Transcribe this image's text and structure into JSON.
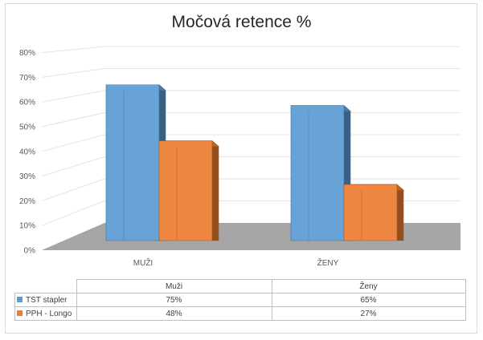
{
  "chart_data": {
    "type": "bar",
    "title": "Močová retence %",
    "categories": [
      "MUŽI",
      "ŽENY"
    ],
    "table_headers": [
      "Muži",
      "Ženy"
    ],
    "series": [
      {
        "name": "TST stapler",
        "values": [
          75,
          65
        ],
        "labels": [
          "75%",
          "65%"
        ],
        "color": "#5b9bd5"
      },
      {
        "name": "PPH - Longo",
        "values": [
          48,
          27
        ],
        "labels": [
          "48%",
          "27%"
        ],
        "color": "#ed7d31"
      }
    ],
    "ylim": [
      0,
      80
    ],
    "yticks": [
      "0%",
      "10%",
      "20%",
      "30%",
      "40%",
      "50%",
      "60%",
      "70%",
      "80%"
    ],
    "grid": true,
    "legend": "data-table"
  }
}
